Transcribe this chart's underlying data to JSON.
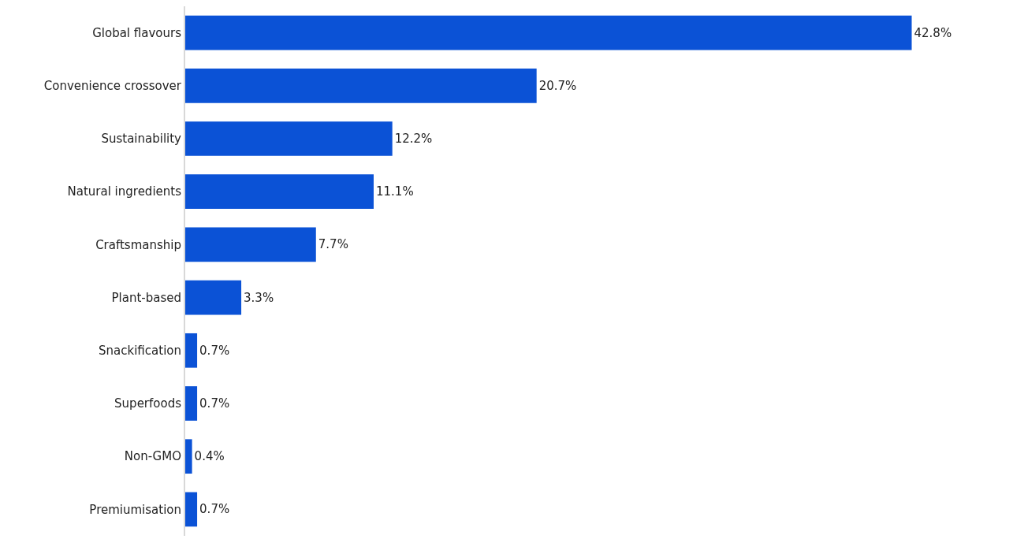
{
  "chart_data": {
    "type": "bar",
    "orientation": "horizontal",
    "categories": [
      "Global flavours",
      "Convenience crossover",
      "Sustainability",
      "Natural ingredients",
      "Craftsmanship",
      "Plant-based",
      "Snackification",
      "Superfoods",
      "Non-GMO",
      "Premiumisation"
    ],
    "values": [
      42.8,
      20.7,
      12.2,
      11.1,
      7.7,
      3.3,
      0.7,
      0.7,
      0.4,
      0.7
    ],
    "value_labels": [
      "42.8%",
      "20.7%",
      "12.2%",
      "11.1%",
      "7.7%",
      "3.3%",
      "0.7%",
      "0.7%",
      "0.4%",
      "0.7%"
    ],
    "color": "#0b52d6",
    "grid": false,
    "legend": false
  }
}
